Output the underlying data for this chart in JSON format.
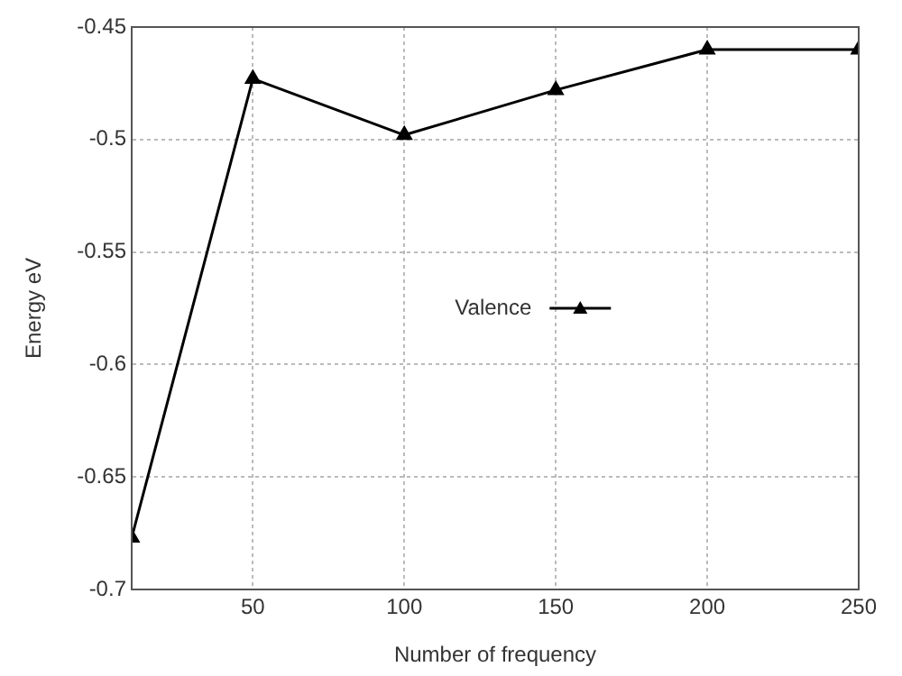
{
  "chart_data": {
    "type": "line",
    "xlabel": "Number of frequency",
    "ylabel": "Energy eV",
    "x": [
      10,
      50,
      100,
      150,
      200,
      250
    ],
    "series": [
      {
        "name": "Valence",
        "color": "#000000",
        "values": [
          -0.677,
          -0.473,
          -0.498,
          -0.478,
          -0.46,
          -0.46
        ]
      }
    ],
    "xlim": [
      10,
      250
    ],
    "xticks": [
      50,
      100,
      150,
      200,
      250
    ],
    "ylim": [
      -0.7,
      -0.45
    ],
    "yticks": [
      -0.7,
      -0.65,
      -0.6,
      -0.55,
      -0.5,
      -0.45
    ],
    "grid": true,
    "legend": "center",
    "marker": "triangle",
    "line_style": "solid"
  }
}
